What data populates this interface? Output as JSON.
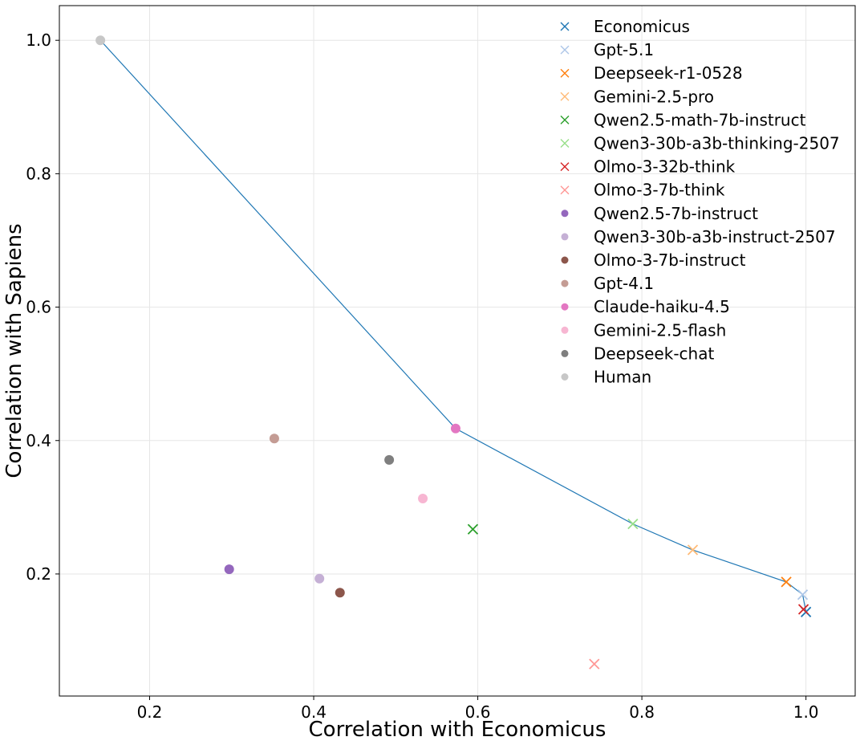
{
  "chart_data": {
    "type": "scatter",
    "title": "",
    "xlabel": "Correlation with Economicus",
    "ylabel": "Correlation with Sapiens",
    "xlim": [
      0.09,
      1.06
    ],
    "ylim": [
      0.017,
      1.052
    ],
    "xticks": [
      0.2,
      0.4,
      0.6,
      0.8,
      1.0
    ],
    "yticks": [
      0.2,
      0.4,
      0.6,
      0.8,
      1.0
    ],
    "xtick_labels": [
      "0.2",
      "0.4",
      "0.6",
      "0.8",
      "1.0"
    ],
    "ytick_labels": [
      "0.2",
      "0.4",
      "0.6",
      "0.8",
      "1.0"
    ],
    "grid": true,
    "legend_position": "top-right",
    "frontier": {
      "color": "#1f77b4",
      "points": [
        {
          "x": 0.14,
          "y": 1.0
        },
        {
          "x": 0.573,
          "y": 0.418
        },
        {
          "x": 0.789,
          "y": 0.275
        },
        {
          "x": 0.862,
          "y": 0.236
        },
        {
          "x": 0.976,
          "y": 0.188
        },
        {
          "x": 0.996,
          "y": 0.169
        },
        {
          "x": 1.0,
          "y": 0.143
        }
      ]
    },
    "series": [
      {
        "name": "Economicus",
        "marker": "x",
        "color": "#1f77b4",
        "x": 1.0,
        "y": 0.143
      },
      {
        "name": "Gpt-5.1",
        "marker": "x",
        "color": "#aec7e8",
        "x": 0.996,
        "y": 0.169
      },
      {
        "name": "Deepseek-r1-0528",
        "marker": "x",
        "color": "#ff7f0e",
        "x": 0.976,
        "y": 0.188
      },
      {
        "name": "Gemini-2.5-pro",
        "marker": "x",
        "color": "#ffbb78",
        "x": 0.862,
        "y": 0.236
      },
      {
        "name": "Qwen2.5-math-7b-instruct",
        "marker": "x",
        "color": "#2ca02c",
        "x": 0.594,
        "y": 0.267
      },
      {
        "name": "Qwen3-30b-a3b-thinking-2507",
        "marker": "x",
        "color": "#98df8a",
        "x": 0.789,
        "y": 0.275
      },
      {
        "name": "Olmo-3-32b-think",
        "marker": "x",
        "color": "#d62728",
        "x": 0.997,
        "y": 0.147
      },
      {
        "name": "Olmo-3-7b-think",
        "marker": "x",
        "color": "#ff9896",
        "x": 0.742,
        "y": 0.065
      },
      {
        "name": "Qwen2.5-7b-instruct",
        "marker": "o",
        "color": "#9467bd",
        "x": 0.297,
        "y": 0.207
      },
      {
        "name": "Qwen3-30b-a3b-instruct-2507",
        "marker": "o",
        "color": "#c5b0d5",
        "x": 0.407,
        "y": 0.193
      },
      {
        "name": "Olmo-3-7b-instruct",
        "marker": "o",
        "color": "#8c564b",
        "x": 0.432,
        "y": 0.172
      },
      {
        "name": "Gpt-4.1",
        "marker": "o",
        "color": "#c49c94",
        "x": 0.352,
        "y": 0.403
      },
      {
        "name": "Claude-haiku-4.5",
        "marker": "o",
        "color": "#e377c2",
        "x": 0.573,
        "y": 0.418
      },
      {
        "name": "Gemini-2.5-flash",
        "marker": "o",
        "color": "#f7b6d2",
        "x": 0.533,
        "y": 0.313
      },
      {
        "name": "Deepseek-chat",
        "marker": "o",
        "color": "#7f7f7f",
        "x": 0.492,
        "y": 0.371
      },
      {
        "name": "Human",
        "marker": "o",
        "color": "#c7c7c7",
        "x": 0.14,
        "y": 1.0
      }
    ]
  }
}
